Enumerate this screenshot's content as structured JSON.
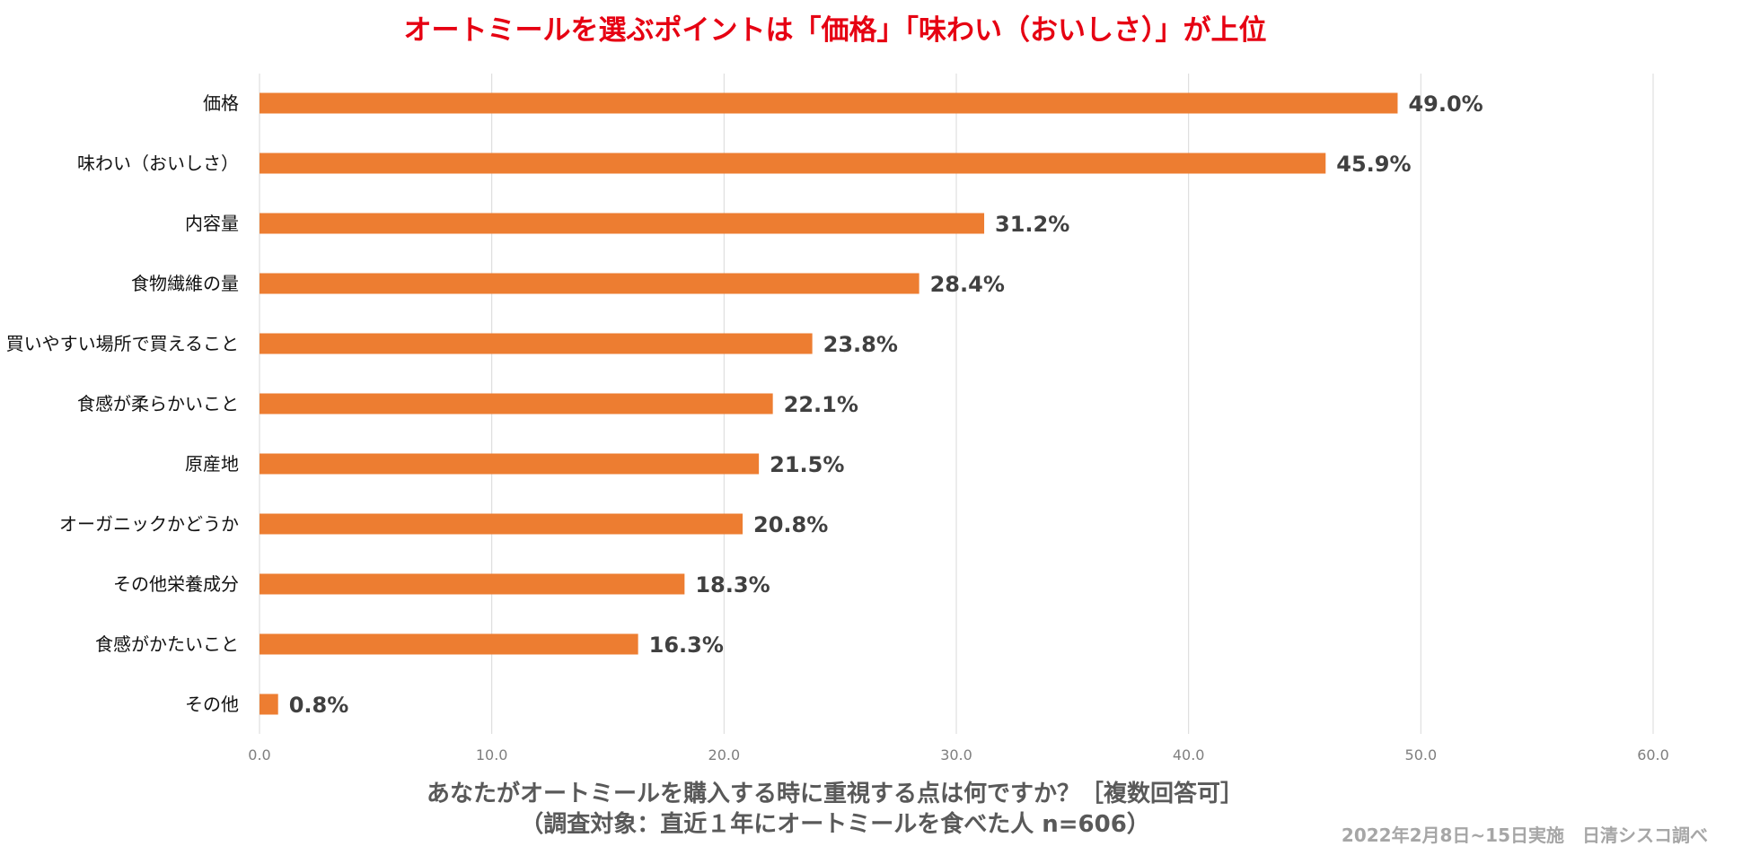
{
  "title": "オートミールを選ぶポイントは「価格」「味わい（おいしさ）」が上位",
  "question": {
    "line1": "あなたがオートミールを購入する時に重視する点は何ですか？［複数回答可］",
    "line2": "（調査対象：直近１年にオートミールを食べた人 n=606）"
  },
  "source": "2022年2月8日~15日実施　日清シスコ調べ",
  "colors": {
    "bar": "#ed7d31",
    "title": "#e60012",
    "grid": "#d9d9d9"
  },
  "chart_data": {
    "type": "bar",
    "orientation": "horizontal",
    "title": "オートミールを選ぶポイントは「価格」「味わい（おいしさ）」が上位",
    "xlabel": "",
    "ylabel": "",
    "xlim": [
      0,
      60
    ],
    "xticks": [
      "0.0",
      "10.0",
      "20.0",
      "30.0",
      "40.0",
      "50.0",
      "60.0"
    ],
    "grid": true,
    "unit": "%",
    "categories": [
      "価格",
      "味わい（おいしさ）",
      "内容量",
      "食物繊維の量",
      "買いやすい場所で買えること",
      "食感が柔らかいこと",
      "原産地",
      "オーガニックかどうか",
      "その他栄養成分",
      "食感がかたいこと",
      "その他"
    ],
    "values": [
      49.0,
      45.9,
      31.2,
      28.4,
      23.8,
      22.1,
      21.5,
      20.8,
      18.3,
      16.3,
      0.8
    ],
    "value_labels": [
      "49.0%",
      "45.9%",
      "31.2%",
      "28.4%",
      "23.8%",
      "22.1%",
      "21.5%",
      "20.8%",
      "18.3%",
      "16.3%",
      "0.8%"
    ]
  }
}
